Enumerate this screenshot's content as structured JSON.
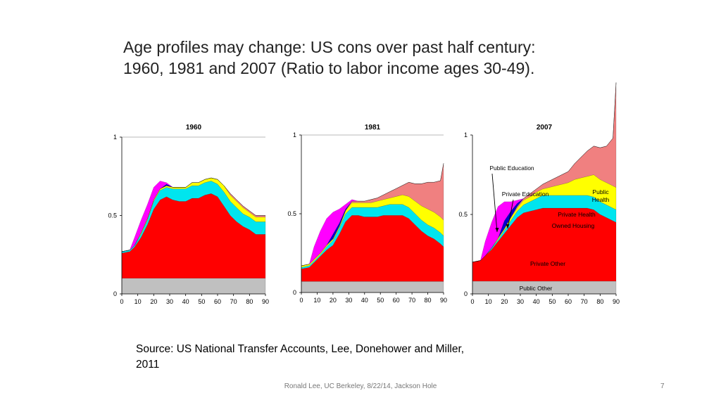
{
  "slide": {
    "title_line1": "Age profiles may change: US cons over past half century:",
    "title_line2": "1960, 1981 and 2007 (Ratio to labor income ages 30-49).",
    "source_line1": "Source: US National Transfer Accounts, Lee, Donehower and Miller,",
    "source_line2": "2011",
    "footer": "Ronald Lee, UC Berkeley, 8/22/14, Jackson Hole",
    "page_number": "7"
  },
  "colors": {
    "Public Other": "#c0c0c0",
    "Private Other": "#ff0000",
    "Owned Housing": "#00e5ee",
    "Private Health": "#ffff00",
    "Public Health": "#f08080",
    "Private Education": "#0000cc",
    "Public Education": "#ff00ff"
  },
  "chart_data": [
    {
      "type": "area",
      "title": "1960",
      "xlabel": "",
      "ylabel": "",
      "x_ticks": [
        "0",
        "10",
        "20",
        "30",
        "40",
        "50",
        "60",
        "70",
        "80",
        "90"
      ],
      "y_ticks": [
        "0",
        "0.5",
        "1"
      ],
      "xlim": [
        0,
        90
      ],
      "ylim": [
        0,
        1
      ],
      "grid": "horizontal line at 1",
      "legend": "none",
      "ages": [
        0,
        5,
        8,
        12,
        16,
        20,
        24,
        28,
        32,
        36,
        40,
        44,
        48,
        52,
        56,
        60,
        64,
        68,
        72,
        76,
        80,
        84,
        88,
        90
      ],
      "series": [
        {
          "name": "Public Other",
          "values": [
            0.1,
            0.1,
            0.1,
            0.1,
            0.1,
            0.1,
            0.1,
            0.1,
            0.1,
            0.1,
            0.1,
            0.1,
            0.1,
            0.1,
            0.1,
            0.1,
            0.1,
            0.1,
            0.1,
            0.1,
            0.1,
            0.1,
            0.1,
            0.1
          ]
        },
        {
          "name": "Private Other",
          "values": [
            0.16,
            0.17,
            0.2,
            0.26,
            0.34,
            0.44,
            0.5,
            0.52,
            0.5,
            0.49,
            0.49,
            0.51,
            0.51,
            0.53,
            0.54,
            0.52,
            0.46,
            0.4,
            0.36,
            0.33,
            0.31,
            0.28,
            0.28,
            0.28
          ]
        },
        {
          "name": "Owned Housing",
          "values": [
            0.01,
            0.01,
            0.01,
            0.02,
            0.03,
            0.05,
            0.06,
            0.06,
            0.07,
            0.08,
            0.08,
            0.08,
            0.08,
            0.08,
            0.08,
            0.08,
            0.09,
            0.09,
            0.09,
            0.08,
            0.08,
            0.08,
            0.08,
            0.08
          ]
        },
        {
          "name": "Private Health",
          "values": [
            0.0,
            0.0,
            0.0,
            0.01,
            0.01,
            0.01,
            0.01,
            0.01,
            0.01,
            0.01,
            0.01,
            0.02,
            0.02,
            0.02,
            0.02,
            0.03,
            0.04,
            0.04,
            0.04,
            0.04,
            0.03,
            0.03,
            0.03,
            0.03
          ]
        },
        {
          "name": "Public Health",
          "values": [
            0.0,
            0.0,
            0.0,
            0.0,
            0.0,
            0.0,
            0.0,
            0.0,
            0.0,
            0.0,
            0.0,
            0.0,
            0.0,
            0.0,
            0.0,
            0.0,
            0.0,
            0.01,
            0.01,
            0.01,
            0.01,
            0.01,
            0.01,
            0.01
          ]
        },
        {
          "name": "Private Education",
          "values": [
            0.0,
            0.0,
            0.0,
            0.0,
            0.0,
            0.0,
            0.0,
            0.01,
            0.0,
            0.0,
            0.0,
            0.0,
            0.0,
            0.0,
            0.0,
            0.0,
            0.0,
            0.0,
            0.0,
            0.0,
            0.0,
            0.0,
            0.0,
            0.0
          ]
        },
        {
          "name": "Public Education",
          "values": [
            0.0,
            0.0,
            0.05,
            0.08,
            0.09,
            0.08,
            0.05,
            0.01,
            0.0,
            0.0,
            0.0,
            0.0,
            0.0,
            0.0,
            0.0,
            0.0,
            0.0,
            0.0,
            0.0,
            0.0,
            0.0,
            0.0,
            0.0,
            0.0
          ]
        }
      ],
      "annotations": []
    },
    {
      "type": "area",
      "title": "1981",
      "xlabel": "",
      "ylabel": "",
      "x_ticks": [
        "0",
        "10",
        "20",
        "30",
        "40",
        "50",
        "60",
        "70",
        "80",
        "90"
      ],
      "y_ticks": [
        "0",
        "0.5",
        "1"
      ],
      "xlim": [
        0,
        90
      ],
      "ylim": [
        0,
        1
      ],
      "grid": "horizontal line at 1",
      "legend": "none",
      "ages": [
        0,
        5,
        8,
        12,
        16,
        20,
        24,
        28,
        32,
        36,
        40,
        44,
        48,
        52,
        56,
        60,
        64,
        68,
        72,
        76,
        80,
        84,
        88,
        90
      ],
      "series": [
        {
          "name": "Public Other",
          "values": [
            0.07,
            0.07,
            0.07,
            0.07,
            0.07,
            0.07,
            0.07,
            0.07,
            0.07,
            0.07,
            0.07,
            0.07,
            0.07,
            0.07,
            0.07,
            0.07,
            0.07,
            0.07,
            0.07,
            0.07,
            0.07,
            0.07,
            0.07,
            0.07
          ]
        },
        {
          "name": "Private Other",
          "values": [
            0.08,
            0.09,
            0.12,
            0.16,
            0.2,
            0.23,
            0.3,
            0.38,
            0.42,
            0.42,
            0.41,
            0.41,
            0.41,
            0.42,
            0.42,
            0.42,
            0.42,
            0.4,
            0.36,
            0.32,
            0.29,
            0.27,
            0.24,
            0.22
          ]
        },
        {
          "name": "Owned Housing",
          "values": [
            0.01,
            0.01,
            0.01,
            0.01,
            0.02,
            0.03,
            0.04,
            0.05,
            0.05,
            0.05,
            0.06,
            0.06,
            0.06,
            0.06,
            0.07,
            0.07,
            0.07,
            0.07,
            0.07,
            0.07,
            0.07,
            0.07,
            0.07,
            0.07
          ]
        },
        {
          "name": "Private Health",
          "values": [
            0.01,
            0.01,
            0.01,
            0.01,
            0.01,
            0.01,
            0.01,
            0.02,
            0.03,
            0.03,
            0.03,
            0.03,
            0.04,
            0.04,
            0.04,
            0.05,
            0.06,
            0.07,
            0.08,
            0.09,
            0.1,
            0.1,
            0.1,
            0.1
          ]
        },
        {
          "name": "Public Health",
          "values": [
            0.0,
            0.0,
            0.0,
            0.0,
            0.0,
            0.0,
            0.0,
            0.0,
            0.01,
            0.01,
            0.01,
            0.02,
            0.02,
            0.03,
            0.04,
            0.05,
            0.06,
            0.09,
            0.11,
            0.14,
            0.17,
            0.19,
            0.23,
            0.36
          ]
        },
        {
          "name": "Private Education",
          "values": [
            0.0,
            0.0,
            0.0,
            0.0,
            0.0,
            0.03,
            0.02,
            0.01,
            0.0,
            0.0,
            0.0,
            0.0,
            0.0,
            0.0,
            0.0,
            0.0,
            0.0,
            0.0,
            0.0,
            0.0,
            0.0,
            0.0,
            0.0,
            0.0
          ]
        },
        {
          "name": "Public Education",
          "values": [
            0.0,
            0.0,
            0.08,
            0.14,
            0.17,
            0.14,
            0.09,
            0.03,
            0.01,
            0.0,
            0.0,
            0.0,
            0.0,
            0.0,
            0.0,
            0.0,
            0.0,
            0.0,
            0.0,
            0.0,
            0.0,
            0.0,
            0.0,
            0.0
          ]
        }
      ],
      "annotations": []
    },
    {
      "type": "area",
      "title": "2007",
      "xlabel": "",
      "ylabel": "",
      "x_ticks": [
        "0",
        "10",
        "20",
        "30",
        "40",
        "50",
        "60",
        "70",
        "80",
        "90"
      ],
      "y_ticks": [
        "0",
        "0.5",
        "1"
      ],
      "xlim": [
        0,
        90
      ],
      "ylim": [
        0,
        1
      ],
      "grid": "none",
      "legend": "none",
      "ages": [
        0,
        5,
        8,
        12,
        16,
        20,
        24,
        28,
        32,
        36,
        40,
        44,
        48,
        52,
        56,
        60,
        64,
        68,
        72,
        76,
        80,
        84,
        88,
        90
      ],
      "series": [
        {
          "name": "Public Other",
          "values": [
            0.08,
            0.08,
            0.08,
            0.08,
            0.08,
            0.08,
            0.08,
            0.08,
            0.08,
            0.08,
            0.08,
            0.08,
            0.08,
            0.08,
            0.08,
            0.08,
            0.08,
            0.08,
            0.08,
            0.08,
            0.08,
            0.08,
            0.08,
            0.08
          ]
        },
        {
          "name": "Private Other",
          "values": [
            0.12,
            0.13,
            0.16,
            0.2,
            0.25,
            0.3,
            0.35,
            0.4,
            0.43,
            0.44,
            0.45,
            0.46,
            0.46,
            0.46,
            0.46,
            0.46,
            0.46,
            0.46,
            0.46,
            0.45,
            0.42,
            0.4,
            0.38,
            0.37
          ]
        },
        {
          "name": "Owned Housing",
          "values": [
            0.0,
            0.0,
            0.0,
            0.01,
            0.01,
            0.02,
            0.03,
            0.04,
            0.05,
            0.06,
            0.07,
            0.08,
            0.08,
            0.08,
            0.08,
            0.08,
            0.08,
            0.08,
            0.08,
            0.08,
            0.08,
            0.08,
            0.08,
            0.08
          ]
        },
        {
          "name": "Private Health",
          "values": [
            0.0,
            0.0,
            0.0,
            0.0,
            0.01,
            0.01,
            0.02,
            0.02,
            0.03,
            0.03,
            0.04,
            0.04,
            0.05,
            0.06,
            0.07,
            0.08,
            0.1,
            0.11,
            0.12,
            0.14,
            0.14,
            0.14,
            0.14,
            0.14
          ]
        },
        {
          "name": "Public Health",
          "values": [
            0.0,
            0.0,
            0.0,
            0.0,
            0.0,
            0.0,
            0.0,
            0.01,
            0.01,
            0.02,
            0.02,
            0.03,
            0.04,
            0.05,
            0.06,
            0.07,
            0.1,
            0.13,
            0.16,
            0.18,
            0.2,
            0.23,
            0.3,
            0.66
          ]
        },
        {
          "name": "Private Education",
          "values": [
            0.0,
            0.0,
            0.0,
            0.0,
            0.0,
            0.05,
            0.04,
            0.02,
            0.0,
            0.0,
            0.0,
            0.0,
            0.0,
            0.0,
            0.0,
            0.0,
            0.0,
            0.0,
            0.0,
            0.0,
            0.0,
            0.0,
            0.0,
            0.0
          ]
        },
        {
          "name": "Public Education",
          "values": [
            0.0,
            0.0,
            0.09,
            0.16,
            0.2,
            0.12,
            0.06,
            0.02,
            0.0,
            0.0,
            0.0,
            0.0,
            0.0,
            0.0,
            0.0,
            0.0,
            0.0,
            0.0,
            0.0,
            0.0,
            0.0,
            0.0,
            0.0,
            0.0
          ]
        }
      ],
      "annotations": [
        "Public Education",
        "Private Education",
        "Public",
        "Health",
        "Private Health",
        "Owned Housing",
        "Private Other",
        "Public  Other"
      ]
    }
  ]
}
